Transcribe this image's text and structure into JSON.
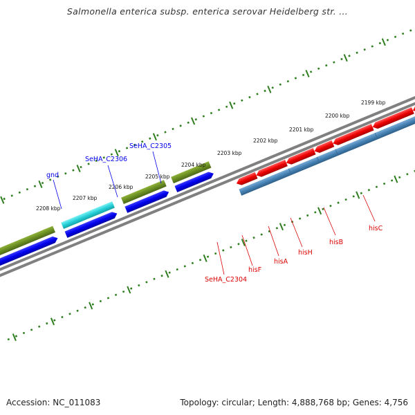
{
  "title": "Salmonella enterica subsp. enterica serovar Heidelberg str. ...",
  "footer": {
    "accession": "Accession: NC_011083",
    "topology": "Topology: circular; Length: 4,888,768 bp; Genes: 4,756"
  },
  "ruler": {
    "unit": "kbp",
    "labels": [
      "2199 kbp",
      "2200 kbp",
      "2201 kbp",
      "2202 kbp",
      "2203 kbp",
      "2204 kbp",
      "2205 kbp",
      "2206 kbp",
      "2207 kbp",
      "2208 kbp"
    ],
    "tick_color": "#2e7d1e"
  },
  "genes_reverse": {
    "color": "#0000ee",
    "labels": [
      "gnd",
      "SeHA_C2306",
      "SeHA_C2305"
    ]
  },
  "genes_forward": {
    "color": "#dd0000",
    "labels": [
      "SeHA_C2304",
      "hisF",
      "hisA",
      "hisH",
      "hisB",
      "hisC"
    ]
  },
  "colors": {
    "backbone": "#808080",
    "cog_green": "#6b8e23",
    "cog_cyan": "#26d0d8",
    "cog_steelblue": "#4682b4",
    "gene_blue": "#0000ee",
    "gene_red": "#ee0000"
  }
}
